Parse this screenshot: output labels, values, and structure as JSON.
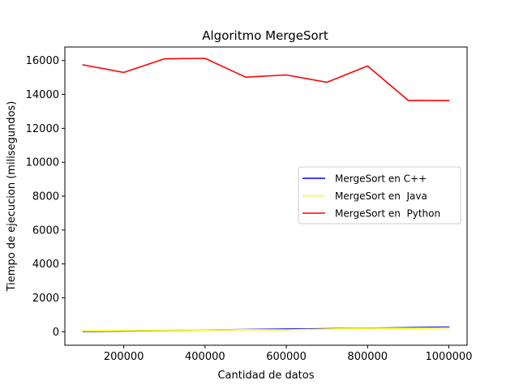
{
  "chart_data": {
    "type": "line",
    "title": "Algoritmo MergeSort",
    "xlabel": "Cantidad de datos",
    "ylabel": "Tiempo de ejecucion (milisegundos)",
    "xlim": [
      55000,
      1045000
    ],
    "ylim": [
      -800,
      16800
    ],
    "xticks": [
      200000,
      400000,
      600000,
      800000,
      1000000
    ],
    "xtick_labels": [
      "200000",
      "400000",
      "600000",
      "800000",
      "1000000"
    ],
    "yticks": [
      0,
      2000,
      4000,
      6000,
      8000,
      10000,
      12000,
      14000,
      16000
    ],
    "ytick_labels": [
      "0",
      "2000",
      "4000",
      "6000",
      "8000",
      "10000",
      "12000",
      "14000",
      "16000"
    ],
    "grid": false,
    "legend_position": "center-right",
    "x": [
      100000,
      200000,
      300000,
      400000,
      500000,
      600000,
      700000,
      800000,
      900000,
      1000000
    ],
    "series": [
      {
        "name": "MergeSort en C++",
        "color": "#0000ff",
        "values": [
          10,
          40,
          70,
          100,
          130,
          150,
          180,
          210,
          240,
          270
        ]
      },
      {
        "name": "MergeSort en  Java",
        "color": "#ffff00",
        "values": [
          40,
          60,
          80,
          100,
          120,
          110,
          150,
          200,
          200,
          230
        ]
      },
      {
        "name": "MergeSort en  Python",
        "color": "#ff0000",
        "values": [
          15750,
          15300,
          16100,
          16130,
          15020,
          15150,
          14720,
          15680,
          13650,
          13640
        ]
      }
    ]
  }
}
